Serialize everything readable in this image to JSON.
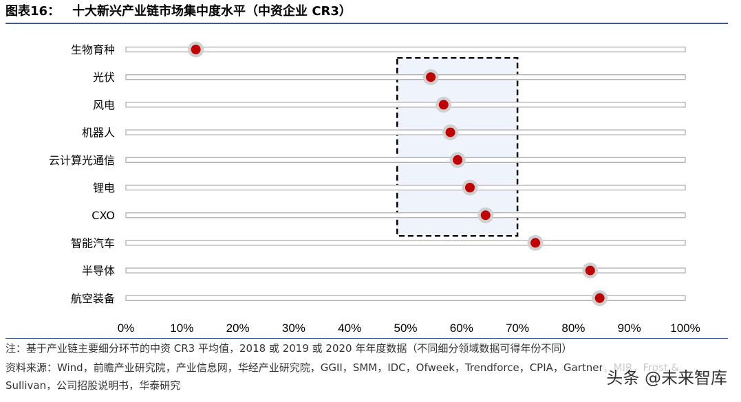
{
  "title": {
    "figure_no": "图表16：",
    "text": "十大新兴产业链市场集中度水平（中资企业 CR3）"
  },
  "chart_data": {
    "type": "scatter",
    "title": "十大新兴产业链市场集中度水平（中资企业 CR3）",
    "categories": [
      "生物育种",
      "光伏",
      "风电",
      "机器人",
      "云计算光通信",
      "锂电",
      "CXO",
      "智能汽车",
      "半导体",
      "航空装备"
    ],
    "values": [
      12.5,
      54.5,
      56.8,
      58.0,
      59.3,
      61.5,
      64.3,
      73.2,
      83.0,
      84.7
    ],
    "x_ticks": [
      "0%",
      "10%",
      "20%",
      "30%",
      "40%",
      "50%",
      "60%",
      "70%",
      "80%",
      "90%",
      "100%"
    ],
    "xlim": [
      0,
      100
    ],
    "highlight_range": [
      48.5,
      70
    ],
    "highlight_rows": [
      "光伏",
      "CXO"
    ],
    "colors": {
      "dot": "#c00000",
      "dot_halo": "#d0d0d0",
      "track": "#b0b0b0",
      "highlight_fill": "#eef3fc"
    }
  },
  "note": "注：基于产业链主要细分环节的中资 CR3 平均值，2018 或 2019 或 2020 年年度数据（不同细分领域数据可得年份不同）",
  "source": "资料来源：Wind，前瞻产业研究院，产业信息网，华经产业研究院，GGII，SMM，IDC，Ofweek，Trendforce，CPIA，Gartner，MIR，Frost & Sullivan，公司招股说明书，华泰研究",
  "watermark": "头条 @未来智库"
}
